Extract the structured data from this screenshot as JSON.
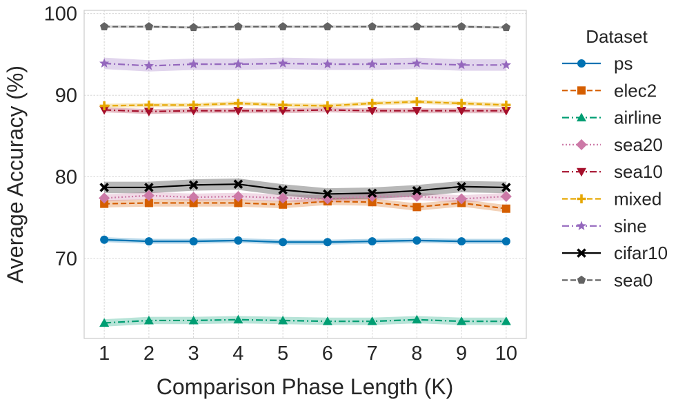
{
  "chart_data": {
    "type": "line",
    "title": "",
    "xlabel": "Comparison Phase Length (K)",
    "ylabel": "Average Accuracy (%)",
    "x": [
      1,
      2,
      3,
      4,
      5,
      6,
      7,
      8,
      9,
      10
    ],
    "xlim": [
      0.55,
      10.45
    ],
    "ylim": [
      60.2,
      100.4
    ],
    "yticks": [
      70,
      80,
      90,
      100
    ],
    "grid": true,
    "legend": {
      "title": "Dataset",
      "placement": "outside-right"
    },
    "series": [
      {
        "name": "ps",
        "color": "#0072b2",
        "dash": "",
        "marker": "circle",
        "values": [
          72.3,
          72.1,
          72.1,
          72.2,
          72.0,
          72.0,
          72.1,
          72.2,
          72.1,
          72.1
        ],
        "band": 0.3
      },
      {
        "name": "elec2",
        "color": "#d55e00",
        "dash": "8 4",
        "marker": "square",
        "values": [
          76.7,
          76.8,
          76.8,
          76.8,
          76.6,
          77.0,
          76.9,
          76.3,
          76.8,
          76.1
        ],
        "band": 0.45
      },
      {
        "name": "airline",
        "color": "#009e73",
        "dash": "10 4 2 4",
        "marker": "triangle-up",
        "values": [
          62.1,
          62.4,
          62.4,
          62.5,
          62.4,
          62.3,
          62.3,
          62.5,
          62.3,
          62.3
        ],
        "band": 0.45
      },
      {
        "name": "sea20",
        "color": "#cc79a7",
        "dash": "2 3",
        "marker": "diamond",
        "values": [
          77.4,
          77.7,
          77.5,
          77.6,
          77.4,
          77.3,
          77.6,
          77.6,
          77.3,
          77.6
        ],
        "band": 0.45
      },
      {
        "name": "sea10",
        "color": "#a50f2b",
        "dash": "10 4 2 4",
        "marker": "triangle-down",
        "values": [
          88.2,
          88.0,
          88.1,
          88.1,
          88.1,
          88.2,
          88.1,
          88.1,
          88.1,
          88.1
        ],
        "band": 0.3
      },
      {
        "name": "mixed",
        "color": "#e6a700",
        "dash": "8 4",
        "marker": "plus",
        "values": [
          88.7,
          88.8,
          88.8,
          89.0,
          88.8,
          88.7,
          89.0,
          89.2,
          89.0,
          88.8
        ],
        "band": 0.25
      },
      {
        "name": "sine",
        "color": "#9467bd",
        "dash": "10 4 2 4",
        "marker": "star",
        "values": [
          93.9,
          93.6,
          93.8,
          93.8,
          93.9,
          93.8,
          93.8,
          93.9,
          93.7,
          93.7
        ],
        "band": 0.7
      },
      {
        "name": "cifar10",
        "color": "#000000",
        "dash": "",
        "marker": "x",
        "values": [
          78.7,
          78.7,
          79.0,
          79.1,
          78.4,
          77.9,
          78.0,
          78.3,
          78.8,
          78.7
        ],
        "band": 0.7
      },
      {
        "name": "sea0",
        "color": "#636363",
        "dash": "8 4",
        "marker": "pentagon",
        "values": [
          98.4,
          98.4,
          98.3,
          98.4,
          98.4,
          98.4,
          98.4,
          98.4,
          98.4,
          98.3
        ],
        "band": 0.15
      }
    ]
  }
}
